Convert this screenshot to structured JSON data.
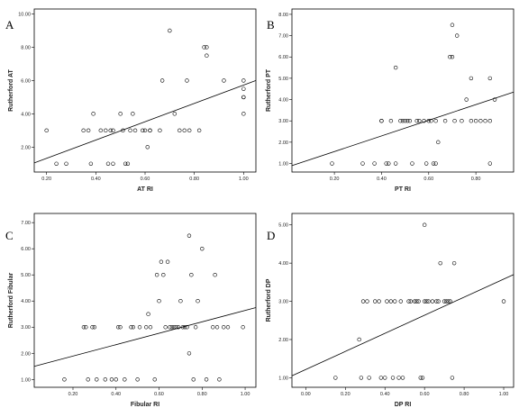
{
  "chart_data": [
    {
      "type": "scatter",
      "panel": "A",
      "xlabel": "AT RI",
      "ylabel": "Rutherford AT",
      "xlim": [
        0.15,
        1.05
      ],
      "ylim": [
        0.5,
        10.3
      ],
      "xticks": [
        "0.20",
        "0.40",
        "0.60",
        "0.80",
        "1.00"
      ],
      "xtick_values": [
        0.2,
        0.4,
        0.6,
        0.8,
        1.0
      ],
      "yticks": [
        "2.00",
        "4.00",
        "6.00",
        "8.00",
        "10.00"
      ],
      "ytick_values": [
        2,
        4,
        6,
        8,
        10
      ],
      "x": [
        0.2,
        0.24,
        0.28,
        0.35,
        0.37,
        0.38,
        0.39,
        0.42,
        0.44,
        0.45,
        0.46,
        0.47,
        0.47,
        0.5,
        0.51,
        0.52,
        0.53,
        0.54,
        0.55,
        0.56,
        0.59,
        0.6,
        0.61,
        0.62,
        0.62,
        0.66,
        0.67,
        0.7,
        0.72,
        0.74,
        0.76,
        0.77,
        0.78,
        0.82,
        0.84,
        0.85,
        0.85,
        0.92,
        1.0,
        1.0,
        1.0,
        1.0,
        1.0
      ],
      "y": [
        3,
        1,
        1,
        3,
        3,
        1,
        4,
        3,
        3,
        1,
        3,
        3,
        1,
        4,
        3,
        1,
        1,
        3,
        4,
        3,
        3,
        3,
        2,
        3,
        3,
        3,
        6,
        9,
        4,
        3,
        3,
        6,
        3,
        3,
        8,
        7.5,
        8,
        6,
        4,
        5,
        5,
        5.5,
        6
      ],
      "fit_line": {
        "x": [
          0.15,
          1.05
        ],
        "y": [
          1.05,
          6.0
        ]
      }
    },
    {
      "type": "scatter",
      "panel": "B",
      "xlabel": "PT RI",
      "ylabel": "Rutherford PT",
      "xlim": [
        0.02,
        0.96
      ],
      "ylim": [
        0.6,
        8.25
      ],
      "xticks": [
        "0.20",
        "0.40",
        "0.60",
        "0.80"
      ],
      "xtick_values": [
        0.2,
        0.4,
        0.6,
        0.8
      ],
      "yticks": [
        "1.00",
        "2.00",
        "3.00",
        "4.00",
        "5.00",
        "6.00",
        "7.00",
        "8.00"
      ],
      "ytick_values": [
        1,
        2,
        3,
        4,
        5,
        6,
        7,
        8
      ],
      "x": [
        0.19,
        0.32,
        0.37,
        0.4,
        0.4,
        0.42,
        0.43,
        0.44,
        0.46,
        0.46,
        0.48,
        0.49,
        0.5,
        0.51,
        0.52,
        0.53,
        0.55,
        0.56,
        0.58,
        0.59,
        0.6,
        0.61,
        0.62,
        0.63,
        0.63,
        0.64,
        0.67,
        0.69,
        0.7,
        0.7,
        0.71,
        0.72,
        0.74,
        0.76,
        0.78,
        0.78,
        0.8,
        0.82,
        0.84,
        0.86,
        0.86,
        0.86,
        0.88
      ],
      "y": [
        1,
        1,
        1,
        3,
        3,
        1,
        1,
        3,
        1,
        5.5,
        3,
        3,
        3,
        3,
        3,
        1,
        3,
        3,
        3,
        1,
        3,
        3,
        1,
        1,
        3,
        2,
        3,
        6,
        7.5,
        6,
        3,
        7,
        3,
        4,
        3,
        5,
        3,
        3,
        3,
        5,
        1,
        3,
        4
      ],
      "fit_line": {
        "x": [
          0.02,
          0.96
        ],
        "y": [
          0.9,
          4.35
        ]
      }
    },
    {
      "type": "scatter",
      "panel": "C",
      "xlabel": "Fibular RI",
      "ylabel": "Rutherford Fibular",
      "xlim": [
        0.02,
        1.05
      ],
      "ylim": [
        0.7,
        7.35
      ],
      "xticks": [
        "0.20",
        "0.40",
        "0.60",
        "0.80",
        "1.00"
      ],
      "xtick_values": [
        0.2,
        0.4,
        0.6,
        0.8,
        1.0
      ],
      "yticks": [
        "1.00",
        "2.00",
        "3.00",
        "4.00",
        "5.00",
        "6.00",
        "7.00"
      ],
      "ytick_values": [
        1,
        2,
        3,
        4,
        5,
        6,
        7
      ],
      "x": [
        0.16,
        0.25,
        0.26,
        0.27,
        0.29,
        0.3,
        0.31,
        0.35,
        0.38,
        0.4,
        0.41,
        0.42,
        0.44,
        0.47,
        0.48,
        0.5,
        0.51,
        0.54,
        0.55,
        0.56,
        0.58,
        0.59,
        0.6,
        0.61,
        0.62,
        0.63,
        0.64,
        0.65,
        0.66,
        0.67,
        0.68,
        0.69,
        0.7,
        0.71,
        0.72,
        0.73,
        0.74,
        0.74,
        0.75,
        0.76,
        0.77,
        0.78,
        0.8,
        0.82,
        0.85,
        0.86,
        0.87,
        0.88,
        0.9,
        0.92,
        0.99
      ],
      "y": [
        1,
        3,
        3,
        1,
        3,
        3,
        1,
        1,
        1,
        1,
        3,
        3,
        1,
        3,
        3,
        1,
        3,
        3,
        3.5,
        3,
        1,
        5,
        4,
        5.5,
        5,
        3,
        5.5,
        3,
        3,
        3,
        3,
        3,
        4,
        3,
        3,
        3,
        6.5,
        2,
        5,
        1,
        3,
        4,
        6,
        1,
        3,
        5,
        3,
        1,
        3,
        3,
        3
      ],
      "fit_line": {
        "x": [
          0.02,
          1.05
        ],
        "y": [
          1.5,
          3.75
        ]
      }
    },
    {
      "type": "scatter",
      "panel": "D",
      "xlabel": "DP RI",
      "ylabel": "Rutherford DP",
      "xlim": [
        -0.07,
        1.05
      ],
      "ylim": [
        0.75,
        5.3
      ],
      "xticks": [
        "0.00",
        "0.20",
        "0.40",
        "0.60",
        "0.80",
        "1.00"
      ],
      "xtick_values": [
        0.0,
        0.2,
        0.4,
        0.6,
        0.8,
        1.0
      ],
      "yticks": [
        "1.00",
        "2.00",
        "3.00",
        "4.00",
        "5.00"
      ],
      "ytick_values": [
        1,
        2,
        3,
        4,
        5
      ],
      "x": [
        0.15,
        0.27,
        0.28,
        0.29,
        0.31,
        0.32,
        0.35,
        0.37,
        0.38,
        0.4,
        0.41,
        0.43,
        0.44,
        0.45,
        0.47,
        0.48,
        0.49,
        0.52,
        0.53,
        0.55,
        0.56,
        0.57,
        0.58,
        0.59,
        0.6,
        0.6,
        0.61,
        0.62,
        0.64,
        0.66,
        0.67,
        0.68,
        0.7,
        0.71,
        0.72,
        0.73,
        0.74,
        0.75,
        1.0
      ],
      "y": [
        1,
        2,
        1,
        3,
        3,
        1,
        3,
        3,
        1,
        1,
        3,
        3,
        1,
        3,
        1,
        3,
        1,
        3,
        3,
        3,
        3,
        3,
        1,
        1,
        3,
        5,
        3,
        3,
        3,
        3,
        3,
        4,
        3,
        3,
        3,
        3,
        1,
        4,
        3
      ],
      "fit_line": {
        "x": [
          -0.07,
          1.05
        ],
        "y": [
          1.05,
          3.7
        ]
      }
    }
  ]
}
